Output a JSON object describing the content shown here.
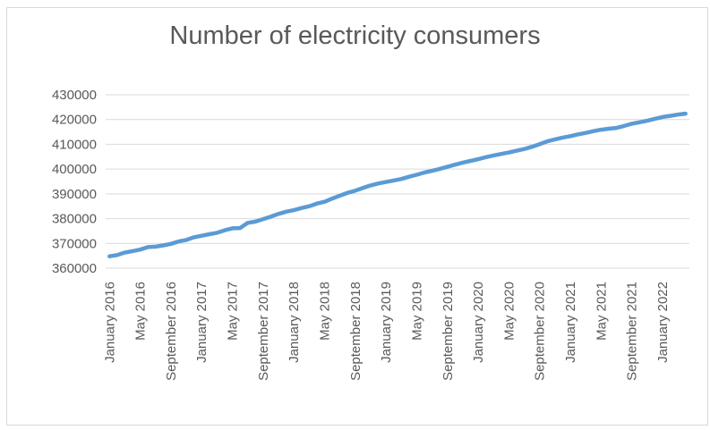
{
  "chart_data": {
    "type": "line",
    "title": "Number of electricity consumers",
    "xlabel": "",
    "ylabel": "",
    "ylim": [
      360000,
      430000
    ],
    "yticks": [
      "430000",
      "420000",
      "410000",
      "400000",
      "390000",
      "380000",
      "370000",
      "360000"
    ],
    "grid": true,
    "legend": "none",
    "line_color": "#5b9bd5",
    "x_tick_labels": [
      "January 2016",
      "May 2016",
      "September 2016",
      "January 2017",
      "May 2017",
      "September 2017",
      "January 2018",
      "May 2018",
      "September 2018",
      "January 2019",
      "May 2019",
      "September 2019",
      "January 2020",
      "May 2020",
      "September 2020",
      "January 2021",
      "May 2021",
      "September 2021",
      "January 2022"
    ],
    "x": [
      "2016-01",
      "2016-02",
      "2016-03",
      "2016-04",
      "2016-05",
      "2016-06",
      "2016-07",
      "2016-08",
      "2016-09",
      "2016-10",
      "2016-11",
      "2016-12",
      "2017-01",
      "2017-02",
      "2017-03",
      "2017-04",
      "2017-05",
      "2017-06",
      "2017-07",
      "2017-08",
      "2017-09",
      "2017-10",
      "2017-11",
      "2017-12",
      "2018-01",
      "2018-02",
      "2018-03",
      "2018-04",
      "2018-05",
      "2018-06",
      "2018-07",
      "2018-08",
      "2018-09",
      "2018-10",
      "2018-11",
      "2018-12",
      "2019-01",
      "2019-02",
      "2019-03",
      "2019-04",
      "2019-05",
      "2019-06",
      "2019-07",
      "2019-08",
      "2019-09",
      "2019-10",
      "2019-11",
      "2019-12",
      "2020-01",
      "2020-02",
      "2020-03",
      "2020-04",
      "2020-05",
      "2020-06",
      "2020-07",
      "2020-08",
      "2020-09",
      "2020-10",
      "2020-11",
      "2020-12",
      "2021-01",
      "2021-02",
      "2021-03",
      "2021-04",
      "2021-05",
      "2021-06",
      "2021-07",
      "2021-08",
      "2021-09",
      "2021-10",
      "2021-11",
      "2021-12",
      "2022-01",
      "2022-02",
      "2022-03",
      "2022-04"
    ],
    "values": [
      364800,
      365300,
      366300,
      366900,
      367500,
      368500,
      368700,
      369200,
      369800,
      370800,
      371400,
      372500,
      373100,
      373700,
      374300,
      375300,
      376100,
      376200,
      378300,
      378800,
      379800,
      380800,
      381900,
      382800,
      383400,
      384300,
      385000,
      386100,
      386800,
      388100,
      389300,
      390400,
      391300,
      392400,
      393400,
      394200,
      394800,
      395400,
      396000,
      396900,
      397700,
      398600,
      399300,
      400100,
      400900,
      401800,
      402600,
      403300,
      404000,
      404800,
      405500,
      406100,
      406700,
      407400,
      408100,
      409000,
      410100,
      411200,
      412000,
      412700,
      413300,
      414000,
      414600,
      415300,
      415900,
      416300,
      416600,
      417400,
      418300,
      418900,
      419500,
      420300,
      421000,
      421500,
      422000,
      422400
    ]
  }
}
